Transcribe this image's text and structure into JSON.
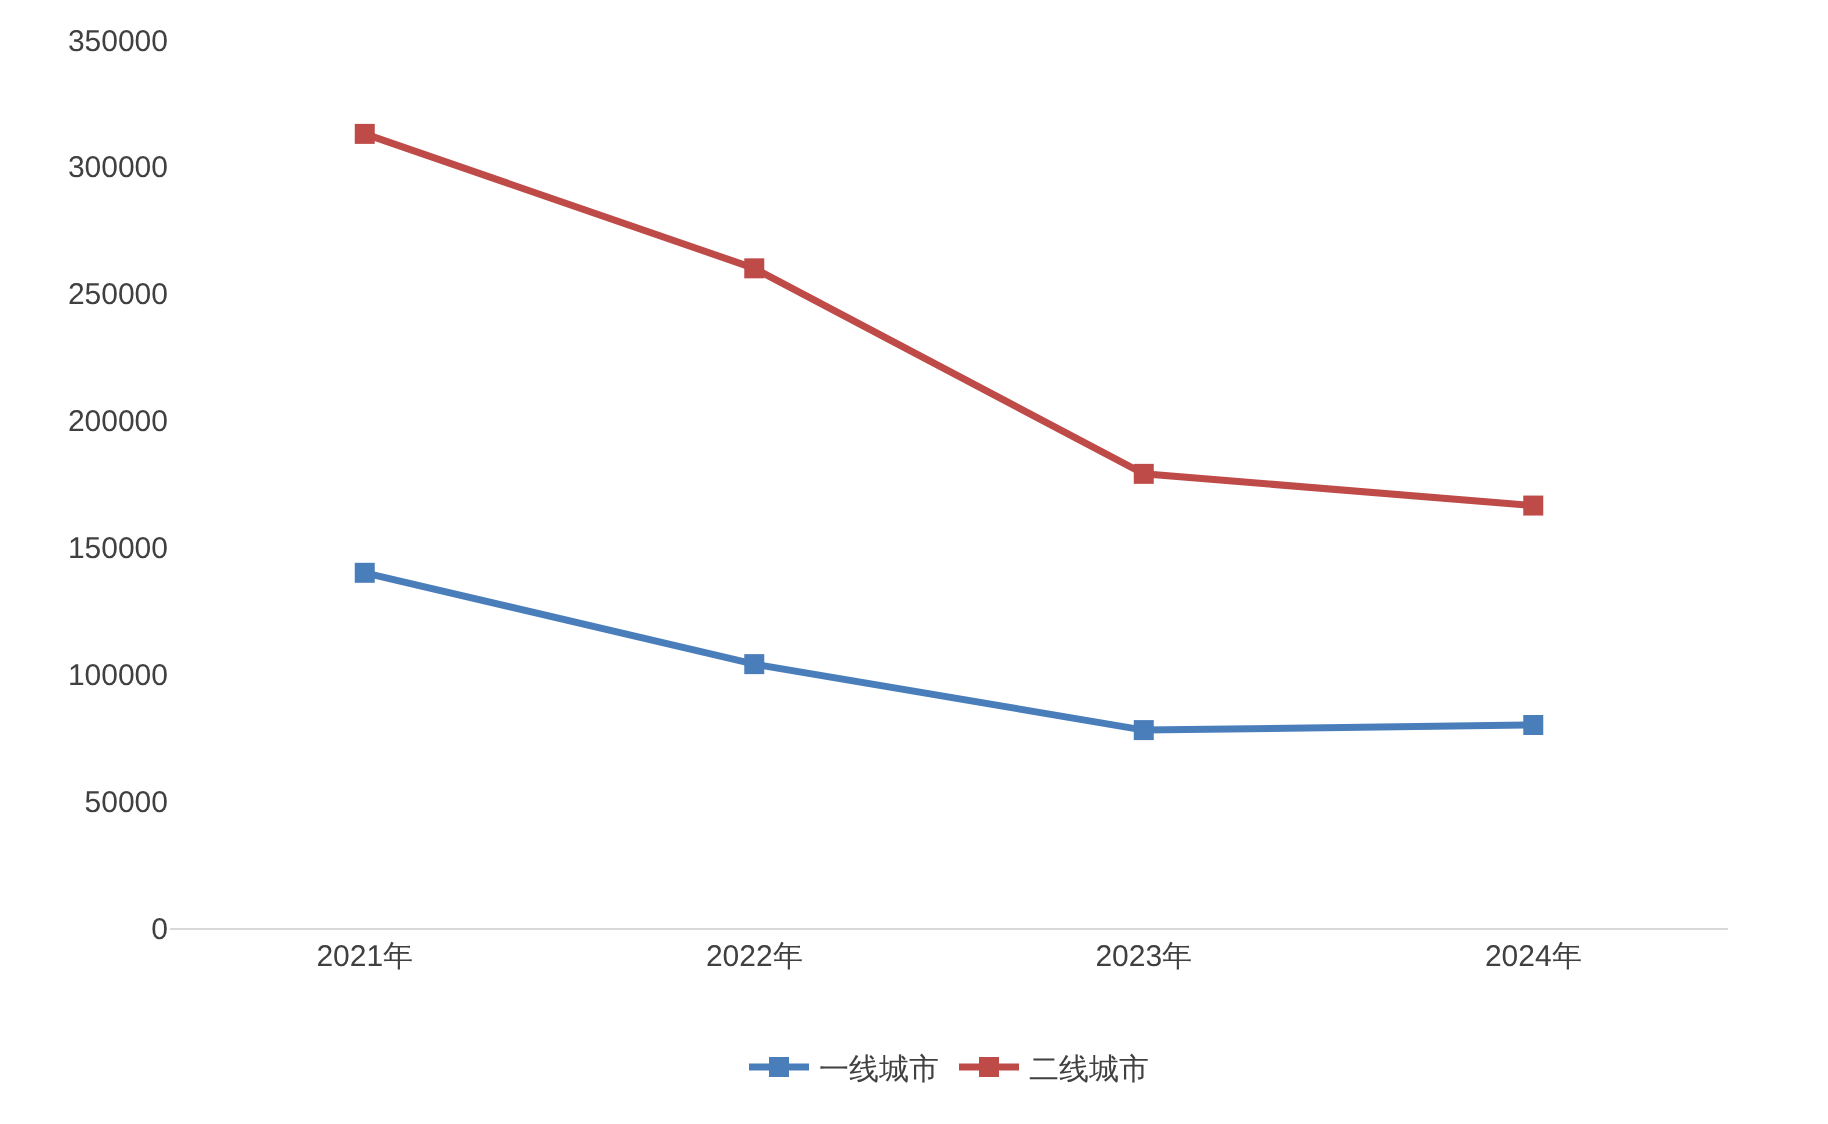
{
  "chart_data": {
    "type": "line",
    "categories": [
      "2021年",
      "2022年",
      "2023年",
      "2024年"
    ],
    "series": [
      {
        "name": "一线城市",
        "color": "#4a7ebb",
        "values": [
          140000,
          104000,
          78000,
          80000
        ]
      },
      {
        "name": "二线城市",
        "color": "#be4b48",
        "values": [
          313000,
          260000,
          179000,
          166500
        ]
      }
    ],
    "ylim": [
      0,
      350000
    ],
    "yticks": [
      0,
      50000,
      100000,
      150000,
      200000,
      250000,
      300000,
      350000
    ],
    "grid": false,
    "legend": "bottom",
    "marker": "square",
    "line_style": "solid"
  }
}
